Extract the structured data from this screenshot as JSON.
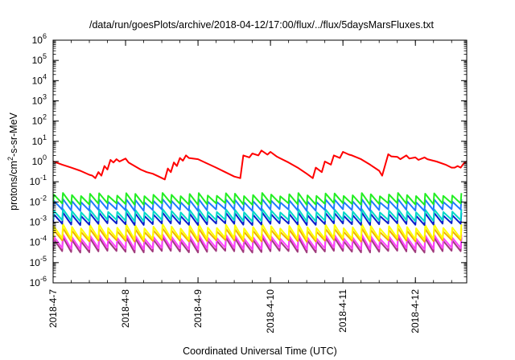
{
  "chart_data": {
    "type": "line",
    "title": "/data/run/goesPlots/archive/2018-04-12/17:00/flux/../flux/5daysMarsFluxes.txt",
    "xlabel": "Coordinated Universal Time (UTC)",
    "ylabel": "protons/cm²-s-sr-MeV",
    "ylabel_parts": {
      "pre": "protons/cm",
      "sup": "2",
      "post": "-s-sr-MeV"
    },
    "xscale": "time",
    "xlim": [
      "2018-04-07T00:00",
      "2018-04-12T17:00"
    ],
    "x_ticks": [
      "2018-4-7",
      "2018-4-8",
      "2018-4-9",
      "2018-4-10",
      "2018-4-11",
      "2018-4-12"
    ],
    "yscale": "log",
    "ylim": [
      1e-06,
      1000000.0
    ],
    "y_ticks": [
      {
        "base": "10",
        "exp": "-6"
      },
      {
        "base": "10",
        "exp": "-5"
      },
      {
        "base": "10",
        "exp": "-4"
      },
      {
        "base": "10",
        "exp": "-3"
      },
      {
        "base": "10",
        "exp": "-2"
      },
      {
        "base": "10",
        "exp": "-1"
      },
      {
        "base": "10",
        "exp": "0"
      },
      {
        "base": "10",
        "exp": "1"
      },
      {
        "base": "10",
        "exp": "2"
      },
      {
        "base": "10",
        "exp": "3"
      },
      {
        "base": "10",
        "exp": "4"
      },
      {
        "base": "10",
        "exp": "5"
      },
      {
        "base": "10",
        "exp": "6"
      }
    ],
    "grid": false,
    "legend": "none",
    "series": [
      {
        "color": "#ff0000",
        "x": [
          "2018-04-07T00:00",
          "2018-04-07T01:00",
          "2018-04-07T03:00",
          "2018-04-07T06:00",
          "2018-04-07T09:00",
          "2018-04-07T12:00",
          "2018-04-07T13:00",
          "2018-04-07T14:00",
          "2018-04-07T15:00",
          "2018-04-07T16:00",
          "2018-04-07T17:00",
          "2018-04-07T18:00",
          "2018-04-07T19:00",
          "2018-04-07T20:00",
          "2018-04-07T21:00",
          "2018-04-07T22:00",
          "2018-04-08T00:00",
          "2018-04-08T01:00",
          "2018-04-08T03:00",
          "2018-04-08T05:00",
          "2018-04-08T07:00",
          "2018-04-08T09:00",
          "2018-04-08T11:00",
          "2018-04-08T13:00",
          "2018-04-08T14:00",
          "2018-04-08T15:00",
          "2018-04-08T16:00",
          "2018-04-08T17:00",
          "2018-04-08T18:00",
          "2018-04-08T19:00",
          "2018-04-08T20:00",
          "2018-04-08T21:00",
          "2018-04-09T00:00",
          "2018-04-09T03:00",
          "2018-04-09T06:00",
          "2018-04-09T09:00",
          "2018-04-09T12:00",
          "2018-04-09T14:00",
          "2018-04-09T15:00",
          "2018-04-09T17:00",
          "2018-04-09T18:00",
          "2018-04-09T20:00",
          "2018-04-09T21:00",
          "2018-04-09T23:00",
          "2018-04-10T00:00",
          "2018-04-10T02:00",
          "2018-04-10T03:00",
          "2018-04-10T06:00",
          "2018-04-10T09:00",
          "2018-04-10T12:00",
          "2018-04-10T14:00",
          "2018-04-10T15:00",
          "2018-04-10T17:00",
          "2018-04-10T18:00",
          "2018-04-10T20:00",
          "2018-04-10T21:00",
          "2018-04-10T23:00",
          "2018-04-11T00:00",
          "2018-04-11T02:00",
          "2018-04-11T03:00",
          "2018-04-11T06:00",
          "2018-04-11T09:00",
          "2018-04-11T12:00",
          "2018-04-11T13:00",
          "2018-04-11T15:00",
          "2018-04-11T16:00",
          "2018-04-11T18:00",
          "2018-04-11T19:00",
          "2018-04-11T21:00",
          "2018-04-11T22:00",
          "2018-04-12T00:00",
          "2018-04-12T01:00",
          "2018-04-12T03:00",
          "2018-04-12T04:00",
          "2018-04-12T07:00",
          "2018-04-12T10:00",
          "2018-04-12T12:00",
          "2018-04-12T13:00",
          "2018-04-12T14:00",
          "2018-04-12T15:00",
          "2018-04-12T16:00",
          "2018-04-12T17:00"
        ],
        "y": [
          1.0,
          0.9,
          0.7,
          0.5,
          0.35,
          0.22,
          0.2,
          0.15,
          0.3,
          0.2,
          0.6,
          0.4,
          1.2,
          0.9,
          1.3,
          1.0,
          1.4,
          0.9,
          0.6,
          0.4,
          0.3,
          0.25,
          0.18,
          0.13,
          0.45,
          0.3,
          0.9,
          0.6,
          1.5,
          1.1,
          2.0,
          1.5,
          1.3,
          0.8,
          0.5,
          0.3,
          0.18,
          0.15,
          2.0,
          1.6,
          2.5,
          2.0,
          3.5,
          2.2,
          3.0,
          1.8,
          1.5,
          0.9,
          0.5,
          0.25,
          0.15,
          0.5,
          0.3,
          1.0,
          0.7,
          2.0,
          1.5,
          3.0,
          2.2,
          2.0,
          1.3,
          0.7,
          0.35,
          0.2,
          2.3,
          1.8,
          1.7,
          1.3,
          2.0,
          1.4,
          1.6,
          1.2,
          1.6,
          1.3,
          1.0,
          0.7,
          0.5,
          0.5,
          0.6,
          0.5,
          0.8,
          1.0
        ]
      },
      {
        "color": "#22ee22",
        "sawtooth": {
          "period_h": 3,
          "low": 0.008,
          "high": 0.028
        }
      },
      {
        "color": "#1e7bff",
        "sawtooth": {
          "period_h": 3,
          "low": 0.004,
          "high": 0.014
        }
      },
      {
        "color": "#00d8c8",
        "sawtooth": {
          "period_h": 3,
          "low": 0.0012,
          "high": 0.0045
        }
      },
      {
        "color": "#0a1ecc",
        "sawtooth": {
          "period_h": 3,
          "low": 0.0008,
          "high": 0.003
        }
      },
      {
        "color": "#ffff00",
        "sawtooth": {
          "period_h": 3,
          "low": 0.00015,
          "high": 0.0008
        }
      },
      {
        "color": "#f0b000",
        "sawtooth": {
          "period_h": 3,
          "low": 0.00012,
          "high": 0.0005
        }
      },
      {
        "color": "#ff44ff",
        "sawtooth": {
          "period_h": 3,
          "low": 5e-05,
          "high": 0.00025
        }
      },
      {
        "color": "#a03a7c",
        "sawtooth": {
          "period_h": 3,
          "low": 3.5e-05,
          "high": 0.00018
        }
      }
    ]
  }
}
